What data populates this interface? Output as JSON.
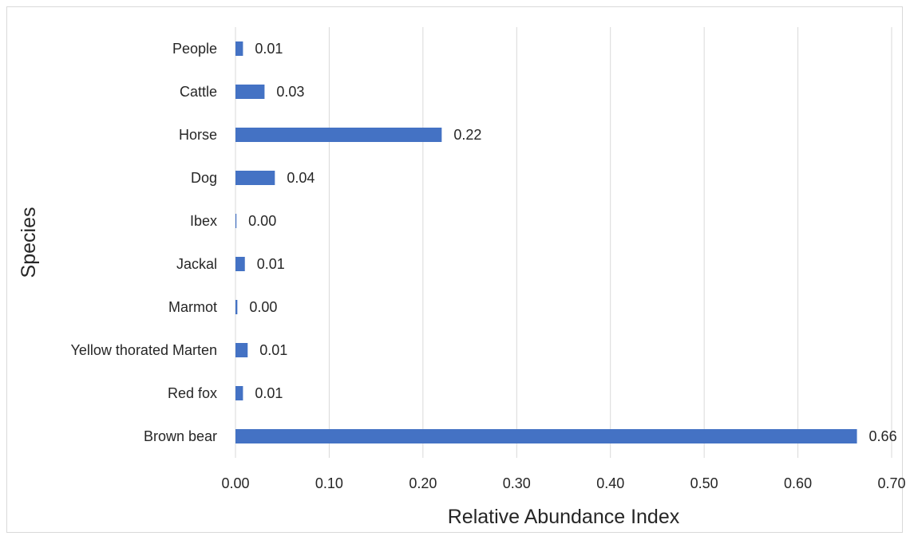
{
  "chart_data": {
    "type": "bar",
    "orientation": "horizontal",
    "categories": [
      "People",
      "Cattle",
      "Horse",
      "Dog",
      "Ibex",
      "Jackal",
      "Marmot",
      "Yellow thorated Marten",
      "Red fox",
      "Brown bear"
    ],
    "values": [
      0.008,
      0.031,
      0.22,
      0.042,
      0.001,
      0.01,
      0.002,
      0.013,
      0.008,
      0.663
    ],
    "data_labels": [
      "0.01",
      "0.03",
      "0.22",
      "0.04",
      "0.00",
      "0.01",
      "0.00",
      "0.01",
      "0.01",
      "0.66"
    ],
    "xlabel": "Relative Abundance Index",
    "ylabel": "Species",
    "xlim": [
      0,
      0.7
    ],
    "x_ticks": [
      "0.00",
      "0.10",
      "0.20",
      "0.30",
      "0.40",
      "0.50",
      "0.60",
      "0.70"
    ],
    "grid": "vertical",
    "bar_color": "#4472c4",
    "legend": "none"
  }
}
